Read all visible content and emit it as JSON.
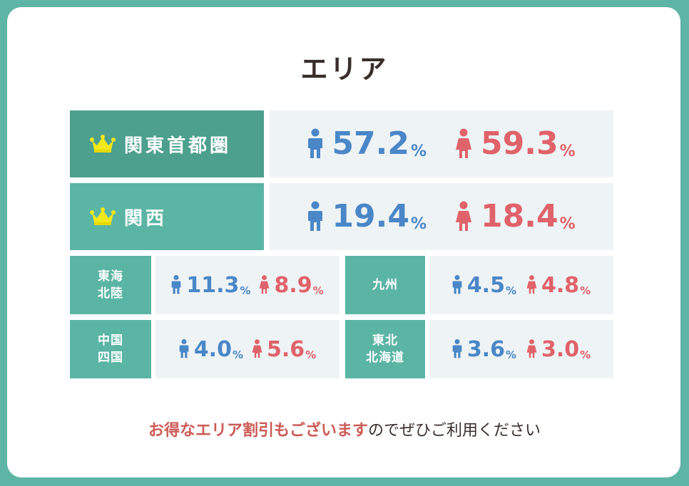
{
  "title": "エリア",
  "colors": {
    "male": "#4a87c8",
    "female": "#e0626a",
    "header_dark": "#4d9f8e",
    "header": "#5bb5a4"
  },
  "regions": [
    {
      "name": "関東首都圏",
      "male": "57.2",
      "female": "59.3",
      "unit": "%",
      "icon": "crown-icon"
    },
    {
      "name": "関西",
      "male": "19.4",
      "female": "18.4",
      "unit": "%",
      "icon": "crown-icon"
    },
    {
      "name1": "東海",
      "name2": "北陸",
      "male": "11.3",
      "female": "8.9",
      "unit": "%"
    },
    {
      "name1": "九州",
      "name2": "",
      "male": "4.5",
      "female": "4.8",
      "unit": "%"
    },
    {
      "name1": "中国",
      "name2": "四国",
      "male": "4.0",
      "female": "5.6",
      "unit": "%"
    },
    {
      "name1": "東北",
      "name2": "北海道",
      "male": "3.6",
      "female": "3.0",
      "unit": "%"
    }
  ],
  "note": {
    "highlight": "お得なエリア割引もございます",
    "rest": "のでぜひご利用ください"
  }
}
